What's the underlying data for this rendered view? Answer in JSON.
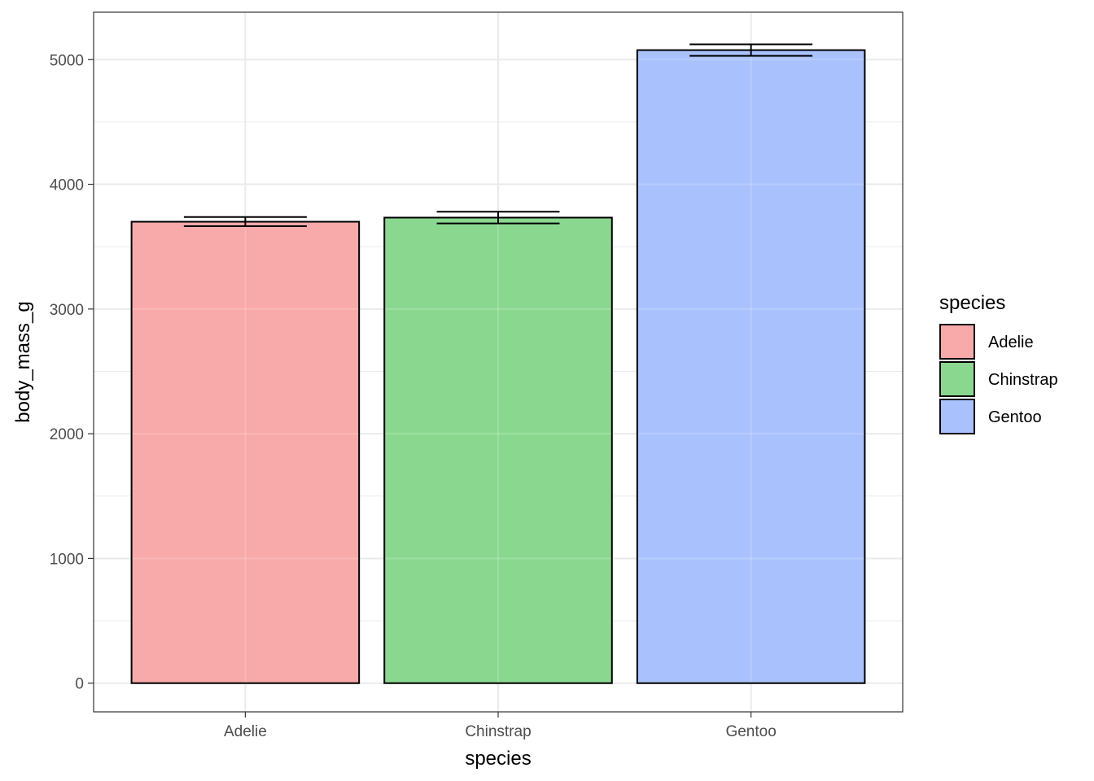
{
  "chart_data": {
    "type": "bar",
    "title": "",
    "xlabel": "species",
    "ylabel": "body_mass_g",
    "categories": [
      "Adelie",
      "Chinstrap",
      "Gentoo"
    ],
    "values": [
      3700,
      3733,
      5076
    ],
    "error_bars": [
      {
        "low": 3664,
        "high": 3738
      },
      {
        "low": 3686,
        "high": 3780
      },
      {
        "low": 5030,
        "high": 5122
      }
    ],
    "colors": [
      "#f8a9a9",
      "#8ad88f",
      "#a9c2fd"
    ],
    "ylim": [
      -230,
      5380
    ],
    "yticks": [
      0,
      1000,
      2000,
      3000,
      4000,
      5000
    ],
    "ytick_labels": [
      "0",
      "1000",
      "2000",
      "3000",
      "4000",
      "5000"
    ],
    "grid": true,
    "legend": {
      "title": "species",
      "position": "right",
      "entries": [
        "Adelie",
        "Chinstrap",
        "Gentoo"
      ]
    }
  }
}
